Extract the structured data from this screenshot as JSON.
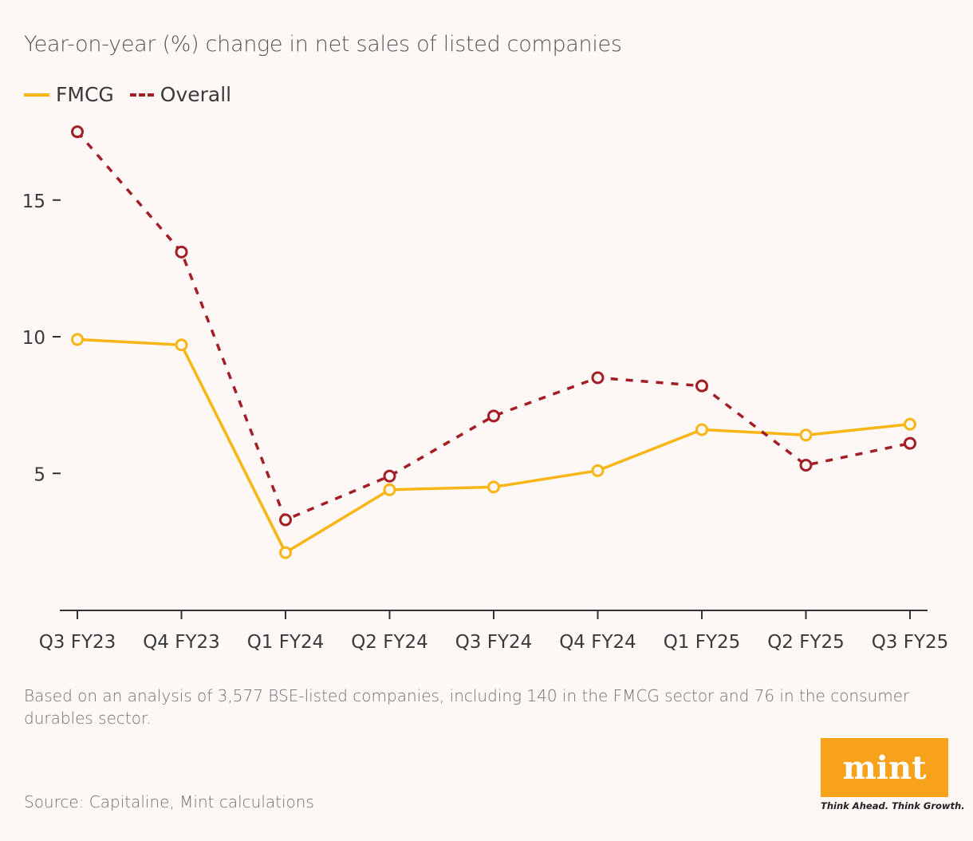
{
  "chart_data": {
    "type": "line",
    "title": "Year-on-year (%) change in net sales of listed companies",
    "categories": [
      "Q3 FY23",
      "Q4 FY23",
      "Q1 FY24",
      "Q2 FY24",
      "Q3 FY24",
      "Q4 FY24",
      "Q1 FY25",
      "Q2 FY25",
      "Q3 FY25"
    ],
    "series": [
      {
        "name": "FMCG",
        "color": "#f8b516",
        "style": "solid",
        "values": [
          9.9,
          9.7,
          2.1,
          4.4,
          4.5,
          5.1,
          6.6,
          6.4,
          6.8
        ]
      },
      {
        "name": "Overall",
        "color": "#a31e26",
        "style": "dashed",
        "values": [
          17.5,
          13.1,
          3.3,
          4.9,
          7.1,
          8.5,
          8.2,
          5.3,
          6.1
        ]
      }
    ],
    "yticks": [
      5,
      10,
      15
    ],
    "ylim": [
      0,
      18
    ],
    "xlabel": "",
    "ylabel": "",
    "legend_position": "top-left"
  },
  "legend": {
    "fmcg": "FMCG",
    "overall": "Overall"
  },
  "footnote": "Based on an analysis of 3,577 BSE-listed companies, including 140 in the FMCG sector and 76 in the consumer durables sector.",
  "source": "Source: Capitaline, Mint calculations",
  "logo": {
    "name": "mint",
    "tagline": "Think Ahead. Think Growth."
  }
}
